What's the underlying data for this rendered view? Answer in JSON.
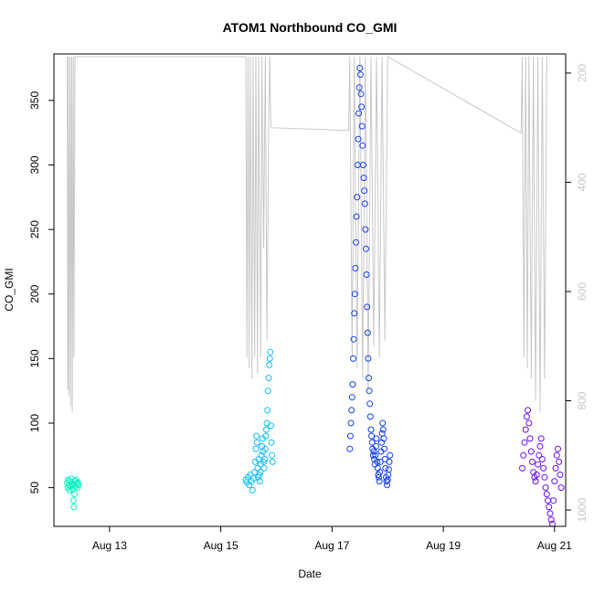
{
  "chart_data": {
    "type": "scatter",
    "title": "ATOM1 Northbound CO_GMI",
    "xlabel": "Date",
    "ylabel": "CO_GMI",
    "x_ticks": [
      "Aug 13",
      "Aug 15",
      "Aug 17",
      "Aug 19",
      "Aug 21"
    ],
    "x_tick_values": [
      13,
      15,
      17,
      19,
      21
    ],
    "xlim": [
      12.0,
      21.2
    ],
    "ylim": [
      20,
      386
    ],
    "y_ticks": [
      50,
      100,
      150,
      200,
      250,
      300,
      350
    ],
    "y2_ticks": [
      200,
      400,
      600,
      800,
      1000
    ],
    "y2lim": [
      1030,
      165
    ],
    "y2_reversed": true,
    "grid": false,
    "series": [
      {
        "color": "#00f5c0",
        "points": [
          [
            12.24,
            54
          ],
          [
            12.25,
            50
          ],
          [
            12.26,
            56
          ],
          [
            12.27,
            52
          ],
          [
            12.28,
            48
          ],
          [
            12.29,
            55
          ],
          [
            12.3,
            51
          ],
          [
            12.31,
            57
          ],
          [
            12.32,
            53
          ],
          [
            12.33,
            49
          ],
          [
            12.34,
            52
          ],
          [
            12.35,
            40
          ],
          [
            12.36,
            35
          ],
          [
            12.37,
            45
          ],
          [
            12.38,
            55
          ],
          [
            12.39,
            51
          ],
          [
            12.4,
            56
          ],
          [
            12.41,
            53
          ],
          [
            12.42,
            50
          ],
          [
            12.43,
            54
          ],
          [
            12.44,
            52
          ]
        ]
      },
      {
        "color": "#16bff5",
        "points": [
          [
            15.45,
            56
          ],
          [
            15.47,
            54
          ],
          [
            15.49,
            58
          ],
          [
            15.51,
            52
          ],
          [
            15.53,
            60
          ],
          [
            15.55,
            55
          ],
          [
            15.57,
            48
          ],
          [
            15.59,
            57
          ],
          [
            15.61,
            62
          ],
          [
            15.62,
            70
          ],
          [
            15.63,
            80
          ],
          [
            15.64,
            90
          ],
          [
            15.65,
            85
          ],
          [
            15.66,
            65
          ],
          [
            15.67,
            58
          ],
          [
            15.68,
            72
          ],
          [
            15.69,
            60
          ],
          [
            15.7,
            55
          ],
          [
            15.71,
            62
          ],
          [
            15.72,
            68
          ],
          [
            15.73,
            75
          ],
          [
            15.74,
            82
          ],
          [
            15.75,
            88
          ],
          [
            15.76,
            78
          ],
          [
            15.77,
            70
          ],
          [
            15.78,
            65
          ],
          [
            15.79,
            72
          ],
          [
            15.8,
            80
          ],
          [
            15.81,
            90
          ],
          [
            15.82,
            95
          ],
          [
            15.83,
            100
          ],
          [
            15.84,
            110
          ],
          [
            15.85,
            125
          ],
          [
            15.86,
            135
          ],
          [
            15.87,
            145
          ],
          [
            15.88,
            150
          ],
          [
            15.89,
            155
          ],
          [
            15.9,
            98
          ],
          [
            15.91,
            85
          ],
          [
            15.92,
            75
          ],
          [
            15.93,
            70
          ]
        ]
      },
      {
        "color": "#1440f0",
        "points": [
          [
            17.32,
            80
          ],
          [
            17.33,
            90
          ],
          [
            17.34,
            100
          ],
          [
            17.35,
            110
          ],
          [
            17.36,
            120
          ],
          [
            17.37,
            130
          ],
          [
            17.38,
            150
          ],
          [
            17.39,
            165
          ],
          [
            17.4,
            185
          ],
          [
            17.41,
            200
          ],
          [
            17.42,
            220
          ],
          [
            17.43,
            240
          ],
          [
            17.44,
            260
          ],
          [
            17.45,
            275
          ],
          [
            17.46,
            300
          ],
          [
            17.47,
            320
          ],
          [
            17.48,
            340
          ],
          [
            17.49,
            360
          ],
          [
            17.5,
            375
          ],
          [
            17.51,
            370
          ],
          [
            17.52,
            355
          ],
          [
            17.53,
            345
          ],
          [
            17.54,
            330
          ],
          [
            17.55,
            315
          ],
          [
            17.56,
            300
          ],
          [
            17.57,
            290
          ],
          [
            17.58,
            280
          ],
          [
            17.59,
            270
          ],
          [
            17.6,
            250
          ],
          [
            17.61,
            235
          ],
          [
            17.62,
            215
          ],
          [
            17.63,
            190
          ],
          [
            17.64,
            170
          ],
          [
            17.65,
            150
          ],
          [
            17.66,
            135
          ],
          [
            17.67,
            125
          ],
          [
            17.68,
            115
          ],
          [
            17.69,
            105
          ],
          [
            17.7,
            95
          ],
          [
            17.71,
            90
          ],
          [
            17.72,
            85
          ],
          [
            17.73,
            80
          ],
          [
            17.74,
            75
          ],
          [
            17.75,
            78
          ],
          [
            17.76,
            72
          ],
          [
            17.77,
            68
          ],
          [
            17.78,
            75
          ],
          [
            17.79,
            82
          ],
          [
            17.8,
            88
          ],
          [
            17.81,
            70
          ],
          [
            17.82,
            65
          ],
          [
            17.83,
            60
          ],
          [
            17.84,
            58
          ],
          [
            17.85,
            55
          ],
          [
            17.86,
            62
          ],
          [
            17.87,
            70
          ],
          [
            17.88,
            78
          ],
          [
            17.89,
            85
          ],
          [
            17.9,
            92
          ],
          [
            17.91,
            100
          ],
          [
            17.92,
            95
          ],
          [
            17.93,
            88
          ],
          [
            17.94,
            80
          ],
          [
            17.95,
            72
          ],
          [
            17.96,
            65
          ],
          [
            17.97,
            58
          ],
          [
            17.98,
            55
          ],
          [
            17.99,
            52
          ],
          [
            18.0,
            56
          ],
          [
            18.01,
            60
          ],
          [
            18.02,
            64
          ],
          [
            18.03,
            70
          ],
          [
            18.04,
            75
          ]
        ]
      },
      {
        "color": "#6a10f5",
        "points": [
          [
            20.42,
            65
          ],
          [
            20.44,
            75
          ],
          [
            20.46,
            85
          ],
          [
            20.48,
            95
          ],
          [
            20.5,
            105
          ],
          [
            20.52,
            110
          ],
          [
            20.54,
            100
          ],
          [
            20.56,
            88
          ],
          [
            20.58,
            78
          ],
          [
            20.6,
            70
          ],
          [
            20.62,
            62
          ],
          [
            20.64,
            58
          ],
          [
            20.66,
            55
          ],
          [
            20.68,
            60
          ],
          [
            20.7,
            68
          ],
          [
            20.72,
            75
          ],
          [
            20.74,
            82
          ],
          [
            20.76,
            88
          ],
          [
            20.78,
            72
          ],
          [
            20.8,
            65
          ],
          [
            20.82,
            58
          ],
          [
            20.84,
            50
          ],
          [
            20.86,
            45
          ],
          [
            20.88,
            40
          ],
          [
            20.9,
            35
          ],
          [
            20.92,
            30
          ],
          [
            20.94,
            25
          ],
          [
            20.96,
            22
          ],
          [
            20.98,
            40
          ],
          [
            21.0,
            55
          ],
          [
            21.02,
            65
          ],
          [
            21.04,
            75
          ],
          [
            21.06,
            80
          ],
          [
            21.08,
            70
          ],
          [
            21.1,
            60
          ],
          [
            21.12,
            50
          ]
        ]
      }
    ],
    "pressure_trace": {
      "color": "#c8c8c8",
      "points": [
        [
          12.24,
          170
        ],
        [
          12.25,
          780
        ],
        [
          12.26,
          170
        ],
        [
          12.27,
          790
        ],
        [
          12.29,
          170
        ],
        [
          12.3,
          810
        ],
        [
          12.32,
          170
        ],
        [
          12.33,
          820
        ],
        [
          12.35,
          170
        ],
        [
          12.36,
          720
        ],
        [
          12.38,
          170
        ],
        [
          15.45,
          170
        ],
        [
          15.47,
          720
        ],
        [
          15.49,
          170
        ],
        [
          15.51,
          740
        ],
        [
          15.53,
          170
        ],
        [
          15.56,
          760
        ],
        [
          15.58,
          170
        ],
        [
          15.61,
          720
        ],
        [
          15.63,
          170
        ],
        [
          15.66,
          750
        ],
        [
          15.68,
          170
        ],
        [
          15.72,
          720
        ],
        [
          15.74,
          170
        ],
        [
          15.77,
          520
        ],
        [
          15.8,
          170
        ],
        [
          15.83,
          690
        ],
        [
          15.86,
          295
        ],
        [
          15.88,
          170
        ],
        [
          15.9,
          300
        ],
        [
          17.3,
          305
        ],
        [
          17.32,
          170
        ],
        [
          17.36,
          720
        ],
        [
          17.4,
          170
        ],
        [
          17.45,
          740
        ],
        [
          17.5,
          170
        ],
        [
          17.55,
          760
        ],
        [
          17.6,
          170
        ],
        [
          17.65,
          780
        ],
        [
          17.7,
          170
        ],
        [
          17.75,
          700
        ],
        [
          17.8,
          170
        ],
        [
          17.85,
          720
        ],
        [
          17.9,
          170
        ],
        [
          17.95,
          690
        ],
        [
          18.0,
          170
        ],
        [
          20.4,
          310
        ],
        [
          20.42,
          170
        ],
        [
          20.45,
          720
        ],
        [
          20.48,
          170
        ],
        [
          20.51,
          740
        ],
        [
          20.54,
          170
        ],
        [
          20.58,
          760
        ],
        [
          20.62,
          170
        ],
        [
          20.66,
          800
        ],
        [
          20.7,
          170
        ],
        [
          20.74,
          820
        ],
        [
          20.78,
          170
        ],
        [
          20.82,
          760
        ],
        [
          20.86,
          170
        ]
      ]
    }
  }
}
